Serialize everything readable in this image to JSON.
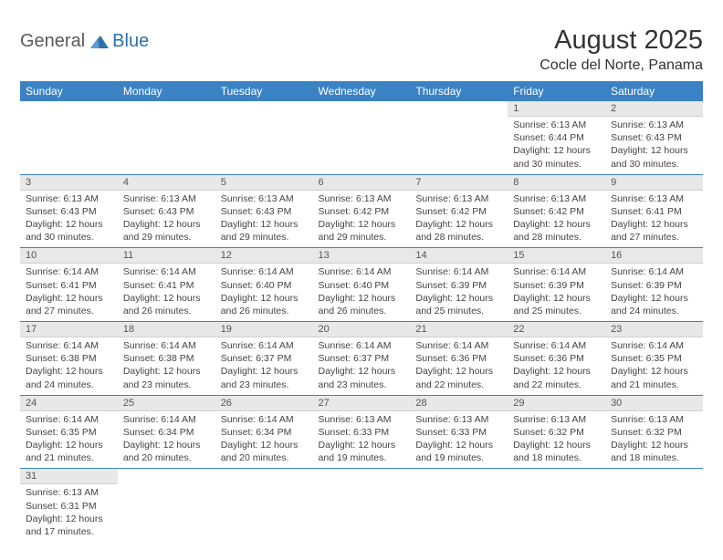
{
  "logo": {
    "text_general": "General",
    "text_blue": "Blue",
    "sail_color": "#2f6fa8",
    "blue_color": "#2f6fa8",
    "general_color": "#5a5a5a"
  },
  "header": {
    "month_title": "August 2025",
    "location": "Cocle del Norte, Panama"
  },
  "styling": {
    "header_bg": "#3b82c4",
    "header_text": "#ffffff",
    "daynum_bg": "#e8e8e8",
    "daynum_text": "#555555",
    "cell_text": "#444444",
    "divider": "#3b82c4",
    "page_bg": "#ffffff",
    "title_fontsize": 29,
    "location_fontsize": 16,
    "dayhead_fontsize": 12,
    "daynum_fontsize": 11,
    "detail_fontsize": 10.5
  },
  "day_headers": [
    "Sunday",
    "Monday",
    "Tuesday",
    "Wednesday",
    "Thursday",
    "Friday",
    "Saturday"
  ],
  "weeks": [
    {
      "days": [
        {
          "num": "",
          "lines": []
        },
        {
          "num": "",
          "lines": []
        },
        {
          "num": "",
          "lines": []
        },
        {
          "num": "",
          "lines": []
        },
        {
          "num": "",
          "lines": []
        },
        {
          "num": "1",
          "lines": [
            "Sunrise: 6:13 AM",
            "Sunset: 6:44 PM",
            "Daylight: 12 hours",
            "and 30 minutes."
          ]
        },
        {
          "num": "2",
          "lines": [
            "Sunrise: 6:13 AM",
            "Sunset: 6:43 PM",
            "Daylight: 12 hours",
            "and 30 minutes."
          ]
        }
      ]
    },
    {
      "days": [
        {
          "num": "3",
          "lines": [
            "Sunrise: 6:13 AM",
            "Sunset: 6:43 PM",
            "Daylight: 12 hours",
            "and 30 minutes."
          ]
        },
        {
          "num": "4",
          "lines": [
            "Sunrise: 6:13 AM",
            "Sunset: 6:43 PM",
            "Daylight: 12 hours",
            "and 29 minutes."
          ]
        },
        {
          "num": "5",
          "lines": [
            "Sunrise: 6:13 AM",
            "Sunset: 6:43 PM",
            "Daylight: 12 hours",
            "and 29 minutes."
          ]
        },
        {
          "num": "6",
          "lines": [
            "Sunrise: 6:13 AM",
            "Sunset: 6:42 PM",
            "Daylight: 12 hours",
            "and 29 minutes."
          ]
        },
        {
          "num": "7",
          "lines": [
            "Sunrise: 6:13 AM",
            "Sunset: 6:42 PM",
            "Daylight: 12 hours",
            "and 28 minutes."
          ]
        },
        {
          "num": "8",
          "lines": [
            "Sunrise: 6:13 AM",
            "Sunset: 6:42 PM",
            "Daylight: 12 hours",
            "and 28 minutes."
          ]
        },
        {
          "num": "9",
          "lines": [
            "Sunrise: 6:13 AM",
            "Sunset: 6:41 PM",
            "Daylight: 12 hours",
            "and 27 minutes."
          ]
        }
      ]
    },
    {
      "days": [
        {
          "num": "10",
          "lines": [
            "Sunrise: 6:14 AM",
            "Sunset: 6:41 PM",
            "Daylight: 12 hours",
            "and 27 minutes."
          ]
        },
        {
          "num": "11",
          "lines": [
            "Sunrise: 6:14 AM",
            "Sunset: 6:41 PM",
            "Daylight: 12 hours",
            "and 26 minutes."
          ]
        },
        {
          "num": "12",
          "lines": [
            "Sunrise: 6:14 AM",
            "Sunset: 6:40 PM",
            "Daylight: 12 hours",
            "and 26 minutes."
          ]
        },
        {
          "num": "13",
          "lines": [
            "Sunrise: 6:14 AM",
            "Sunset: 6:40 PM",
            "Daylight: 12 hours",
            "and 26 minutes."
          ]
        },
        {
          "num": "14",
          "lines": [
            "Sunrise: 6:14 AM",
            "Sunset: 6:39 PM",
            "Daylight: 12 hours",
            "and 25 minutes."
          ]
        },
        {
          "num": "15",
          "lines": [
            "Sunrise: 6:14 AM",
            "Sunset: 6:39 PM",
            "Daylight: 12 hours",
            "and 25 minutes."
          ]
        },
        {
          "num": "16",
          "lines": [
            "Sunrise: 6:14 AM",
            "Sunset: 6:39 PM",
            "Daylight: 12 hours",
            "and 24 minutes."
          ]
        }
      ]
    },
    {
      "days": [
        {
          "num": "17",
          "lines": [
            "Sunrise: 6:14 AM",
            "Sunset: 6:38 PM",
            "Daylight: 12 hours",
            "and 24 minutes."
          ]
        },
        {
          "num": "18",
          "lines": [
            "Sunrise: 6:14 AM",
            "Sunset: 6:38 PM",
            "Daylight: 12 hours",
            "and 23 minutes."
          ]
        },
        {
          "num": "19",
          "lines": [
            "Sunrise: 6:14 AM",
            "Sunset: 6:37 PM",
            "Daylight: 12 hours",
            "and 23 minutes."
          ]
        },
        {
          "num": "20",
          "lines": [
            "Sunrise: 6:14 AM",
            "Sunset: 6:37 PM",
            "Daylight: 12 hours",
            "and 23 minutes."
          ]
        },
        {
          "num": "21",
          "lines": [
            "Sunrise: 6:14 AM",
            "Sunset: 6:36 PM",
            "Daylight: 12 hours",
            "and 22 minutes."
          ]
        },
        {
          "num": "22",
          "lines": [
            "Sunrise: 6:14 AM",
            "Sunset: 6:36 PM",
            "Daylight: 12 hours",
            "and 22 minutes."
          ]
        },
        {
          "num": "23",
          "lines": [
            "Sunrise: 6:14 AM",
            "Sunset: 6:35 PM",
            "Daylight: 12 hours",
            "and 21 minutes."
          ]
        }
      ]
    },
    {
      "days": [
        {
          "num": "24",
          "lines": [
            "Sunrise: 6:14 AM",
            "Sunset: 6:35 PM",
            "Daylight: 12 hours",
            "and 21 minutes."
          ]
        },
        {
          "num": "25",
          "lines": [
            "Sunrise: 6:14 AM",
            "Sunset: 6:34 PM",
            "Daylight: 12 hours",
            "and 20 minutes."
          ]
        },
        {
          "num": "26",
          "lines": [
            "Sunrise: 6:14 AM",
            "Sunset: 6:34 PM",
            "Daylight: 12 hours",
            "and 20 minutes."
          ]
        },
        {
          "num": "27",
          "lines": [
            "Sunrise: 6:13 AM",
            "Sunset: 6:33 PM",
            "Daylight: 12 hours",
            "and 19 minutes."
          ]
        },
        {
          "num": "28",
          "lines": [
            "Sunrise: 6:13 AM",
            "Sunset: 6:33 PM",
            "Daylight: 12 hours",
            "and 19 minutes."
          ]
        },
        {
          "num": "29",
          "lines": [
            "Sunrise: 6:13 AM",
            "Sunset: 6:32 PM",
            "Daylight: 12 hours",
            "and 18 minutes."
          ]
        },
        {
          "num": "30",
          "lines": [
            "Sunrise: 6:13 AM",
            "Sunset: 6:32 PM",
            "Daylight: 12 hours",
            "and 18 minutes."
          ]
        }
      ]
    },
    {
      "days": [
        {
          "num": "31",
          "lines": [
            "Sunrise: 6:13 AM",
            "Sunset: 6:31 PM",
            "Daylight: 12 hours",
            "and 17 minutes."
          ]
        },
        {
          "num": "",
          "lines": []
        },
        {
          "num": "",
          "lines": []
        },
        {
          "num": "",
          "lines": []
        },
        {
          "num": "",
          "lines": []
        },
        {
          "num": "",
          "lines": []
        },
        {
          "num": "",
          "lines": []
        }
      ]
    }
  ]
}
